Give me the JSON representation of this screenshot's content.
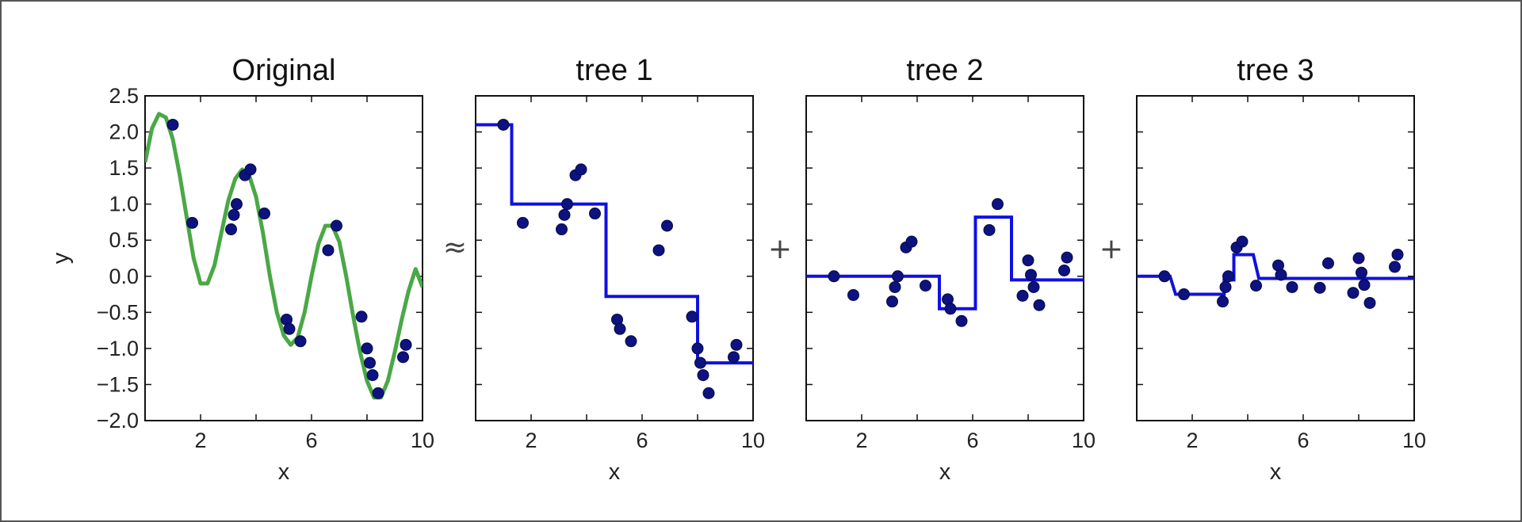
{
  "chart_data": [
    {
      "type": "line",
      "title": "Original",
      "xlabel": "x",
      "ylabel": "y",
      "xlim": [
        0,
        10
      ],
      "ylim": [
        -2.0,
        2.5
      ],
      "xticks": [
        "2",
        "6",
        "10"
      ],
      "xtick_values": [
        2,
        6,
        10
      ],
      "yticks": [
        "2.5",
        "2.0",
        "1.5",
        "1.0",
        "0.5",
        "0.0",
        "−0.5",
        "−1.0",
        "−1.5",
        "−2.0"
      ],
      "ytick_values": [
        2.5,
        2.0,
        1.5,
        1.0,
        0.5,
        0.0,
        -0.5,
        -1.0,
        -1.5,
        -2.0
      ],
      "curve_color": "#4aa846",
      "curve": {
        "x": [
          0,
          0.25,
          0.5,
          0.75,
          1.0,
          1.25,
          1.5,
          1.75,
          2.0,
          2.25,
          2.5,
          2.75,
          3.0,
          3.25,
          3.5,
          3.75,
          4.0,
          4.25,
          4.5,
          4.75,
          5.0,
          5.25,
          5.5,
          5.75,
          6.0,
          6.25,
          6.5,
          6.75,
          7.0,
          7.25,
          7.5,
          7.75,
          8.0,
          8.25,
          8.5,
          8.75,
          9.0,
          9.25,
          9.5,
          9.75,
          10.0
        ],
        "y": [
          1.58,
          2.05,
          2.25,
          2.2,
          1.9,
          1.4,
          0.82,
          0.25,
          -0.1,
          -0.1,
          0.15,
          0.6,
          1.05,
          1.35,
          1.48,
          1.4,
          1.1,
          0.6,
          0.0,
          -0.5,
          -0.82,
          -0.95,
          -0.85,
          -0.5,
          0.0,
          0.45,
          0.7,
          0.7,
          0.48,
          0.0,
          -0.55,
          -1.05,
          -1.45,
          -1.68,
          -1.68,
          -1.45,
          -1.05,
          -0.6,
          -0.2,
          0.1,
          -0.15
        ]
      },
      "points": {
        "x": [
          1.0,
          1.7,
          3.1,
          3.2,
          3.3,
          3.6,
          3.8,
          4.3,
          5.1,
          5.2,
          5.6,
          6.6,
          6.9,
          7.8,
          8.0,
          8.1,
          8.2,
          8.4,
          9.3,
          9.4
        ],
        "y": [
          2.1,
          0.74,
          0.65,
          0.85,
          1.0,
          1.4,
          1.48,
          0.87,
          -0.6,
          -0.73,
          -0.9,
          0.36,
          0.7,
          -0.56,
          -1.0,
          -1.2,
          -1.37,
          -1.62,
          -1.12,
          -0.95
        ]
      }
    },
    {
      "type": "line",
      "title": "tree 1",
      "xlabel": "x",
      "xlim": [
        0,
        10
      ],
      "ylim": [
        -2.0,
        2.5
      ],
      "xticks": [
        "2",
        "6",
        "10"
      ],
      "xtick_values": [
        2,
        6,
        10
      ],
      "step_color": "#1010e0",
      "step": {
        "x": [
          0,
          1.3,
          1.3,
          4.7,
          4.7,
          8.0,
          8.0,
          10.0
        ],
        "y": [
          2.1,
          2.1,
          1.0,
          1.0,
          -0.28,
          -0.28,
          -1.2,
          -1.2
        ]
      },
      "points": {
        "x": [
          1.0,
          1.7,
          3.1,
          3.2,
          3.3,
          3.6,
          3.8,
          4.3,
          5.1,
          5.2,
          5.6,
          6.6,
          6.9,
          7.8,
          8.0,
          8.1,
          8.2,
          8.4,
          9.3,
          9.4
        ],
        "y": [
          2.1,
          0.74,
          0.65,
          0.85,
          1.0,
          1.4,
          1.48,
          0.87,
          -0.6,
          -0.73,
          -0.9,
          0.36,
          0.7,
          -0.56,
          -1.0,
          -1.2,
          -1.37,
          -1.62,
          -1.12,
          -0.95
        ]
      }
    },
    {
      "type": "line",
      "title": "tree 2",
      "xlabel": "x",
      "xlim": [
        0,
        10
      ],
      "ylim": [
        -2.0,
        2.5
      ],
      "xticks": [
        "2",
        "6",
        "10"
      ],
      "xtick_values": [
        2,
        6,
        10
      ],
      "step_color": "#1010e0",
      "step": {
        "x": [
          0,
          4.8,
          4.8,
          6.1,
          6.1,
          7.4,
          7.4,
          10.0
        ],
        "y": [
          0.0,
          0.0,
          -0.45,
          -0.45,
          0.82,
          0.82,
          -0.05,
          -0.05
        ]
      },
      "points": {
        "x": [
          1.0,
          1.7,
          3.1,
          3.2,
          3.3,
          3.6,
          3.8,
          4.3,
          5.1,
          5.2,
          5.6,
          6.6,
          6.9,
          7.8,
          8.0,
          8.1,
          8.2,
          8.4,
          9.3,
          9.4
        ],
        "y": [
          0.0,
          -0.26,
          -0.35,
          -0.15,
          0.0,
          0.4,
          0.48,
          -0.13,
          -0.32,
          -0.45,
          -0.62,
          0.64,
          1.0,
          -0.27,
          0.22,
          0.02,
          -0.15,
          -0.4,
          0.08,
          0.26
        ]
      }
    },
    {
      "type": "line",
      "title": "tree 3",
      "xlabel": "x",
      "xlim": [
        0,
        10
      ],
      "ylim": [
        -2.0,
        2.5
      ],
      "xticks": [
        "2",
        "6",
        "10"
      ],
      "xtick_values": [
        2,
        6,
        10
      ],
      "step_color": "#1010e0",
      "step": {
        "x": [
          0,
          1.2,
          1.4,
          3.15,
          3.15,
          3.5,
          3.5,
          4.2,
          4.4,
          10.0
        ],
        "y": [
          0.0,
          0.0,
          -0.25,
          -0.25,
          -0.05,
          -0.05,
          0.3,
          0.3,
          -0.03,
          -0.03
        ]
      },
      "points": {
        "x": [
          1.0,
          1.7,
          3.1,
          3.2,
          3.3,
          3.6,
          3.8,
          4.3,
          5.1,
          5.2,
          5.6,
          6.6,
          6.9,
          7.8,
          8.0,
          8.1,
          8.2,
          8.4,
          9.3,
          9.4
        ],
        "y": [
          0.0,
          -0.25,
          -0.35,
          -0.15,
          0.0,
          0.4,
          0.48,
          -0.13,
          0.15,
          0.02,
          -0.15,
          -0.16,
          0.18,
          -0.23,
          0.25,
          0.05,
          -0.12,
          -0.37,
          0.13,
          0.3
        ]
      }
    }
  ],
  "operators": [
    "≈",
    "+",
    "+"
  ],
  "point_color": "#0d1280"
}
